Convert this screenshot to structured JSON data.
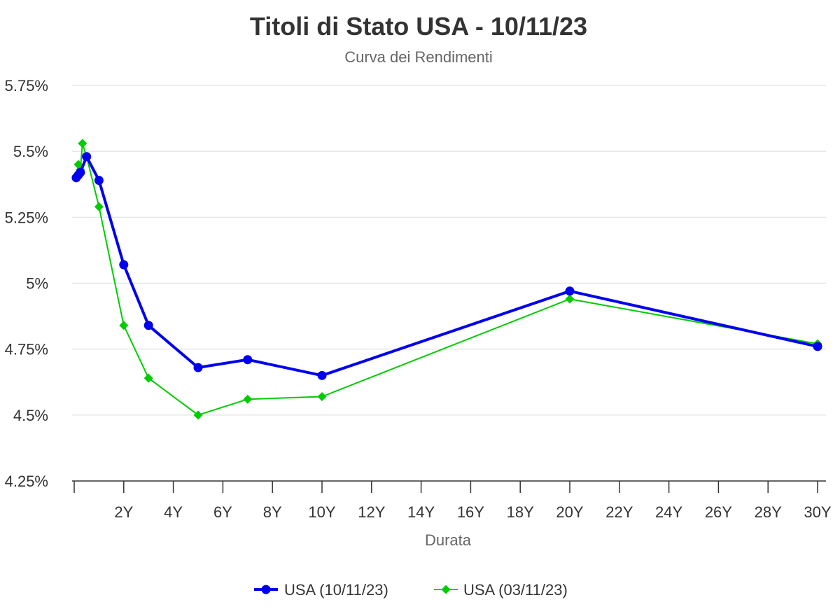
{
  "chart_data": {
    "type": "line",
    "title": "Titoli di Stato USA - 10/11/23",
    "subtitle": "Curva dei Rendimenti",
    "xlabel": "Durata",
    "ylabel": "",
    "xlim": [
      0,
      30.3
    ],
    "ylim": [
      4.25,
      5.75
    ],
    "x_ticks": [
      {
        "value": 2,
        "label": "2Y"
      },
      {
        "value": 4,
        "label": "4Y"
      },
      {
        "value": 6,
        "label": "6Y"
      },
      {
        "value": 8,
        "label": "8Y"
      },
      {
        "value": 10,
        "label": "10Y"
      },
      {
        "value": 12,
        "label": "12Y"
      },
      {
        "value": 14,
        "label": "14Y"
      },
      {
        "value": 16,
        "label": "16Y"
      },
      {
        "value": 18,
        "label": "18Y"
      },
      {
        "value": 20,
        "label": "20Y"
      },
      {
        "value": 22,
        "label": "22Y"
      },
      {
        "value": 24,
        "label": "24Y"
      },
      {
        "value": 26,
        "label": "26Y"
      },
      {
        "value": 28,
        "label": "28Y"
      },
      {
        "value": 30,
        "label": "30Y"
      }
    ],
    "y_ticks": [
      {
        "value": 5.75,
        "label": "5.75%"
      },
      {
        "value": 5.5,
        "label": "5.5%"
      },
      {
        "value": 5.25,
        "label": "5.25%"
      },
      {
        "value": 5.0,
        "label": "5%"
      },
      {
        "value": 4.75,
        "label": "4.75%"
      },
      {
        "value": 4.5,
        "label": "4.5%"
      },
      {
        "value": 4.25,
        "label": "4.25%"
      }
    ],
    "grid": true,
    "legend_position": "bottom",
    "series": [
      {
        "name": "USA (10/11/23)",
        "color": "#0000ee",
        "marker": "circle",
        "line_width": 4,
        "x": [
          0.083,
          0.167,
          0.25,
          0.5,
          1,
          2,
          3,
          5,
          7,
          10,
          20,
          30
        ],
        "y": [
          5.4,
          5.41,
          5.42,
          5.48,
          5.39,
          5.07,
          4.84,
          4.68,
          4.71,
          4.65,
          4.97,
          4.76
        ]
      },
      {
        "name": "USA (03/11/23)",
        "color": "#00cc00",
        "marker": "diamond",
        "line_width": 2,
        "x": [
          0.083,
          0.167,
          0.25,
          0.333,
          0.5,
          1,
          2,
          3,
          5,
          7,
          10,
          20,
          30
        ],
        "y": [
          5.4,
          5.45,
          5.43,
          5.53,
          5.48,
          5.29,
          4.84,
          4.64,
          4.5,
          4.56,
          4.57,
          4.94,
          4.77
        ]
      }
    ]
  }
}
